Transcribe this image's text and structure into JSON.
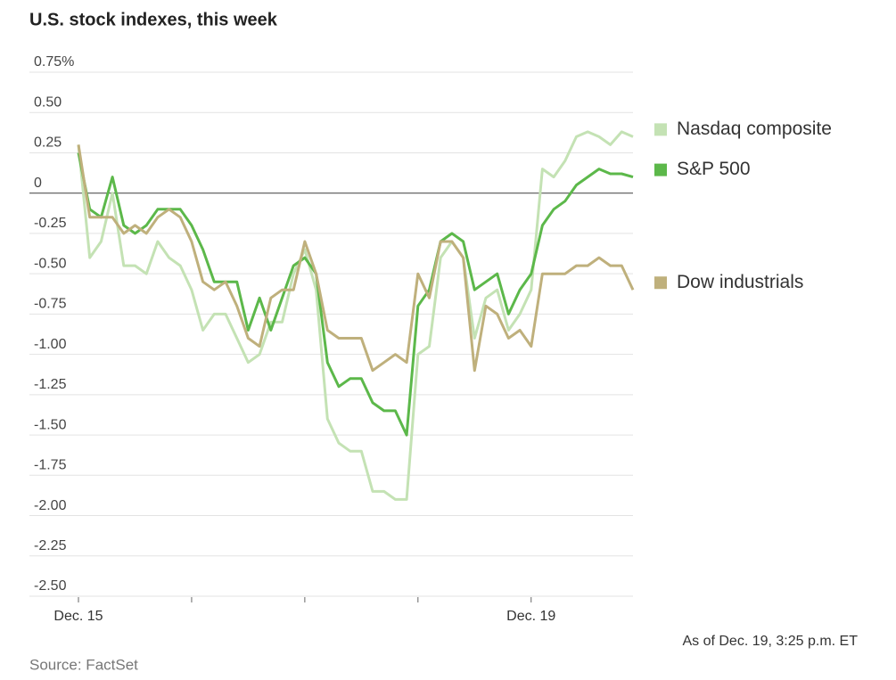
{
  "chart_data": {
    "type": "line",
    "title": "U.S. stock indexes, this week",
    "source": "Source: FactSet",
    "note": "As of Dec. 19, 3:25 p.m. ET",
    "x": [
      0,
      0.1,
      0.2,
      0.3,
      0.4,
      0.5,
      0.6,
      0.7,
      0.8,
      0.9,
      1,
      1.1,
      1.2,
      1.3,
      1.4,
      1.5,
      1.6,
      1.7,
      1.8,
      1.9,
      2,
      2.1,
      2.2,
      2.3,
      2.4,
      2.5,
      2.6,
      2.7,
      2.8,
      2.9,
      3,
      3.1,
      3.2,
      3.3,
      3.4,
      3.5,
      3.6,
      3.7,
      3.8,
      3.9,
      4,
      4.1,
      4.2,
      4.3,
      4.4,
      4.5,
      4.6,
      4.7,
      4.8,
      4.9
    ],
    "xlim": [
      0,
      4.9
    ],
    "xticks": [
      0,
      1,
      2,
      3,
      4
    ],
    "xtick_labels": [
      "Dec. 15",
      null,
      null,
      null,
      "Dec. 19"
    ],
    "ylim": [
      -2.5,
      0.75
    ],
    "yticks": [
      {
        "value": 0.75,
        "label": "0.75%"
      },
      {
        "value": 0.5,
        "label": "0.50"
      },
      0.25,
      0,
      -0.25,
      {
        "value": -0.5,
        "label": "-0.50"
      },
      -0.75,
      {
        "value": -1,
        "label": "-1.00"
      },
      -1.25,
      {
        "value": -1.5,
        "label": "-1.50"
      },
      -1.75,
      {
        "value": -2,
        "label": "-2.00"
      },
      -2.25,
      {
        "value": -2.5,
        "label": "-2.50"
      }
    ],
    "grid": true,
    "series": [
      {
        "name": "Nasdaq composite",
        "color": "#c4e2b4",
        "values": [
          0.3,
          -0.4,
          -0.3,
          0.0,
          -0.45,
          -0.45,
          -0.5,
          -0.3,
          -0.4,
          -0.45,
          -0.6,
          -0.85,
          -0.75,
          -0.75,
          -0.9,
          -1.05,
          -1.0,
          -0.8,
          -0.8,
          -0.5,
          -0.35,
          -0.6,
          -1.4,
          -1.55,
          -1.6,
          -1.6,
          -1.85,
          -1.85,
          -1.9,
          -1.9,
          -1.0,
          -0.95,
          -0.4,
          -0.3,
          -0.4,
          -0.9,
          -0.65,
          -0.6,
          -0.85,
          -0.75,
          -0.6,
          0.15,
          0.1,
          0.2,
          0.35,
          0.38,
          0.35,
          0.3,
          0.38,
          0.35
        ]
      },
      {
        "name": "S&P 500",
        "color": "#5cb84a",
        "values": [
          0.25,
          -0.1,
          -0.15,
          0.1,
          -0.2,
          -0.25,
          -0.2,
          -0.1,
          -0.1,
          -0.1,
          -0.2,
          -0.35,
          -0.55,
          -0.55,
          -0.55,
          -0.85,
          -0.65,
          -0.85,
          -0.65,
          -0.45,
          -0.4,
          -0.5,
          -1.05,
          -1.2,
          -1.15,
          -1.15,
          -1.3,
          -1.35,
          -1.35,
          -1.5,
          -0.7,
          -0.6,
          -0.3,
          -0.25,
          -0.3,
          -0.6,
          -0.55,
          -0.5,
          -0.75,
          -0.6,
          -0.5,
          -0.2,
          -0.1,
          -0.05,
          0.05,
          0.1,
          0.15,
          0.12,
          0.12,
          0.1
        ]
      },
      {
        "name": "Dow industrials",
        "color": "#bfb07c",
        "values": [
          0.3,
          -0.15,
          -0.15,
          -0.15,
          -0.25,
          -0.2,
          -0.25,
          -0.15,
          -0.1,
          -0.15,
          -0.3,
          -0.55,
          -0.6,
          -0.55,
          -0.7,
          -0.9,
          -0.95,
          -0.65,
          -0.6,
          -0.6,
          -0.3,
          -0.5,
          -0.85,
          -0.9,
          -0.9,
          -0.9,
          -1.1,
          -1.05,
          -1.0,
          -1.05,
          -0.5,
          -0.65,
          -0.3,
          -0.3,
          -0.4,
          -1.1,
          -0.7,
          -0.75,
          -0.9,
          -0.85,
          -0.95,
          -0.5,
          -0.5,
          -0.5,
          -0.45,
          -0.45,
          -0.4,
          -0.45,
          -0.45,
          -0.6
        ]
      }
    ]
  }
}
